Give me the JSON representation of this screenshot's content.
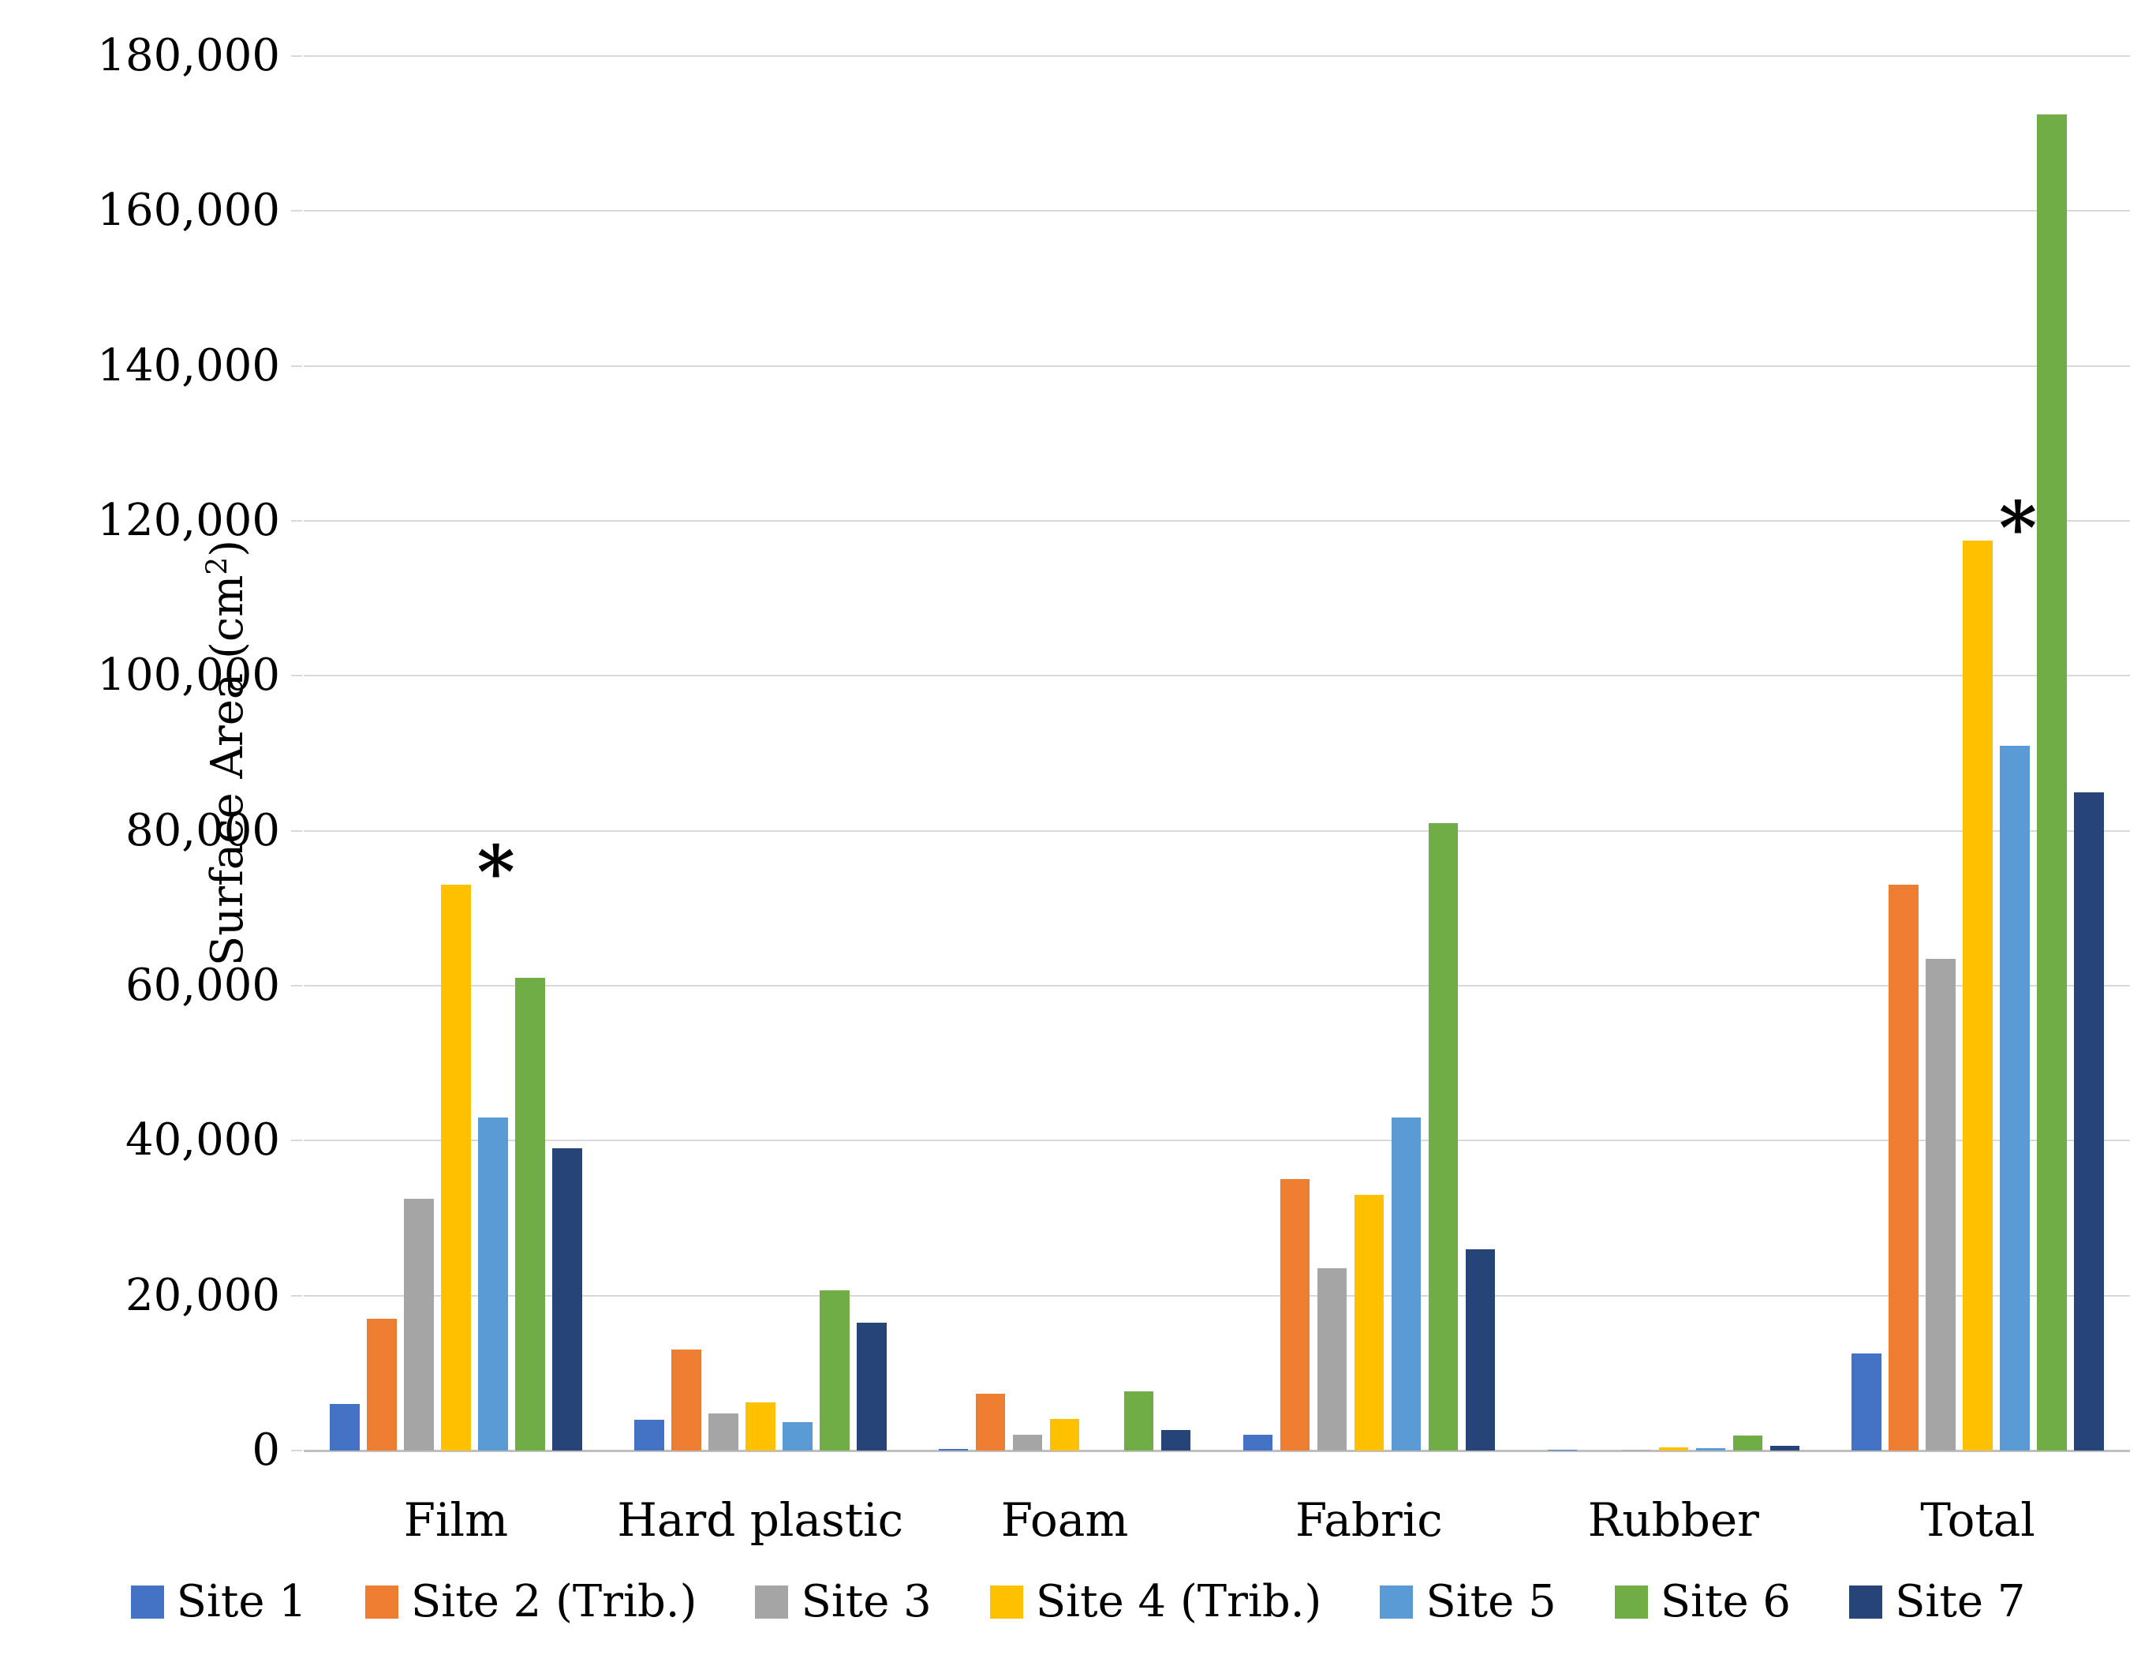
{
  "figure": {
    "background": "#FFFFFF",
    "text_color": "#000000",
    "gridline_color": "#D9D9D9",
    "axis_line_color": "#BFBFBF"
  },
  "y_axis": {
    "title_main": "Surface Area (cm",
    "title_sup": "2",
    "title_close": ")",
    "tick_labels": [
      "0",
      "20,000",
      "40,000",
      "60,000",
      "80,000",
      "100,000",
      "120,000",
      "140,000",
      "160,000",
      "180,000"
    ],
    "tick_values": [
      0,
      20000,
      40000,
      60000,
      80000,
      100000,
      120000,
      140000,
      160000,
      180000
    ]
  },
  "chart_data": {
    "type": "bar",
    "title": "",
    "xlabel": "",
    "ylabel": "Surface Area (cm2)",
    "ylim": [
      0,
      180000
    ],
    "ytick_step": 20000,
    "grid": true,
    "legend_position": "bottom",
    "categories": [
      "Film",
      "Hard plastic",
      "Foam",
      "Fabric",
      "Rubber",
      "Total"
    ],
    "series": [
      {
        "name": "Site 1",
        "color": "#4472C4",
        "values": [
          6000,
          4000,
          250,
          2000,
          150,
          12500
        ]
      },
      {
        "name": "Site 2 (Trib.)",
        "color": "#ED7D31",
        "values": [
          17000,
          13000,
          7300,
          35000,
          0,
          73000
        ]
      },
      {
        "name": "Site 3",
        "color": "#A5A5A5",
        "values": [
          32500,
          4800,
          2000,
          23500,
          100,
          63500
        ]
      },
      {
        "name": "Site 4 (Trib.)",
        "color": "#FFC000",
        "values": [
          73000,
          6200,
          4100,
          33000,
          400,
          117500
        ]
      },
      {
        "name": "Site 5",
        "color": "#5B9BD5",
        "values": [
          43000,
          3700,
          0,
          43000,
          350,
          91000
        ]
      },
      {
        "name": "Site 6",
        "color": "#70AD47",
        "values": [
          61000,
          20700,
          7600,
          81000,
          1900,
          172500
        ]
      },
      {
        "name": "Site 7",
        "color": "#264478",
        "values": [
          39000,
          16500,
          2600,
          26000,
          600,
          85000
        ]
      }
    ],
    "annotations": [
      {
        "symbol": "*",
        "category": "Film",
        "series": "Site 4 (Trib.)"
      },
      {
        "symbol": "*",
        "category": "Total",
        "series": "Site 4 (Trib.)"
      }
    ]
  }
}
